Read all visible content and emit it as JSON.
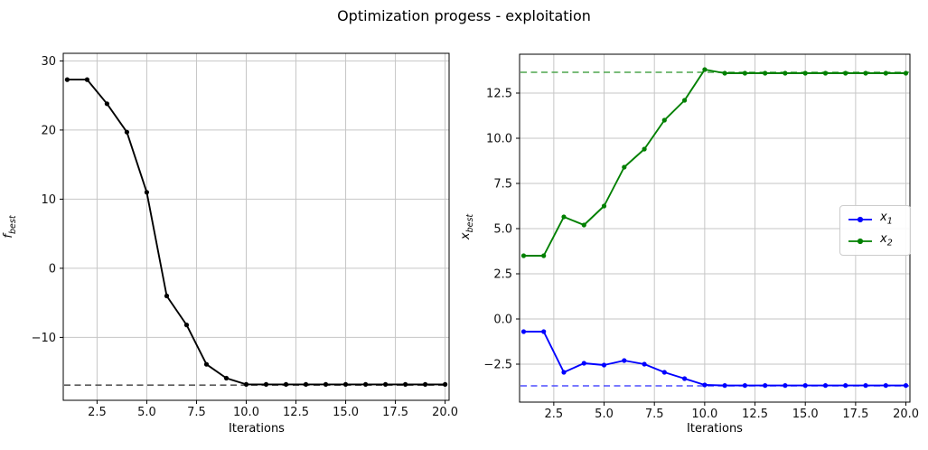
{
  "figure": {
    "title": "Optimization progess - exploitation",
    "background": "#ffffff"
  },
  "chart_data": [
    {
      "type": "line",
      "title": "",
      "xlabel": "Iterations",
      "ylabel": "f_best",
      "ylabel_parts": {
        "var": "f",
        "sub": "best"
      },
      "grid": true,
      "xlim": [
        0.8,
        20.2
      ],
      "ylim": [
        -19.1,
        31.1
      ],
      "xticks": [
        {
          "value": 2.5,
          "label": "2.5"
        },
        {
          "value": 5.0,
          "label": "5.0"
        },
        {
          "value": 7.5,
          "label": "7.5"
        },
        {
          "value": 10.0,
          "label": "10.0"
        },
        {
          "value": 12.5,
          "label": "12.5"
        },
        {
          "value": 15.0,
          "label": "15.0"
        },
        {
          "value": 17.5,
          "label": "17.5"
        },
        {
          "value": 20.0,
          "label": "20.0"
        }
      ],
      "yticks": [
        {
          "value": -10,
          "label": "−10"
        },
        {
          "value": 0,
          "label": "0"
        },
        {
          "value": 10,
          "label": "10"
        },
        {
          "value": 20,
          "label": "20"
        },
        {
          "value": 30,
          "label": "30"
        }
      ],
      "x": [
        1,
        2,
        3,
        4,
        5,
        6,
        7,
        8,
        9,
        10,
        11,
        12,
        13,
        14,
        15,
        16,
        17,
        18,
        19,
        20
      ],
      "series": [
        {
          "name": "f_best",
          "color": "#000000",
          "marker": "point",
          "values": [
            27.3,
            27.3,
            23.8,
            19.7,
            11.0,
            -4.0,
            -8.2,
            -13.9,
            -15.9,
            -16.8,
            -16.8,
            -16.8,
            -16.8,
            -16.8,
            -16.8,
            -16.8,
            -16.8,
            -16.8,
            -16.8,
            -16.8
          ]
        }
      ],
      "reference_lines": [
        {
          "y": -16.9,
          "color": "#595959",
          "style": "dashed"
        }
      ],
      "legend": null
    },
    {
      "type": "line",
      "title": "",
      "xlabel": "Iterations",
      "ylabel": "x_best",
      "ylabel_parts": {
        "var": "x",
        "sub": "best"
      },
      "grid": true,
      "xlim": [
        0.8,
        20.2
      ],
      "ylim": [
        -4.6,
        14.65
      ],
      "xticks": [
        {
          "value": 2.5,
          "label": "2.5"
        },
        {
          "value": 5.0,
          "label": "5.0"
        },
        {
          "value": 7.5,
          "label": "7.5"
        },
        {
          "value": 10.0,
          "label": "10.0"
        },
        {
          "value": 12.5,
          "label": "12.5"
        },
        {
          "value": 15.0,
          "label": "15.0"
        },
        {
          "value": 17.5,
          "label": "17.5"
        },
        {
          "value": 20.0,
          "label": "20.0"
        }
      ],
      "yticks": [
        {
          "value": -2.5,
          "label": "−2.5"
        },
        {
          "value": 0.0,
          "label": "0.0"
        },
        {
          "value": 2.5,
          "label": "2.5"
        },
        {
          "value": 5.0,
          "label": "5.0"
        },
        {
          "value": 7.5,
          "label": "7.5"
        },
        {
          "value": 10.0,
          "label": "10.0"
        },
        {
          "value": 12.5,
          "label": "12.5"
        }
      ],
      "x": [
        1,
        2,
        3,
        4,
        5,
        6,
        7,
        8,
        9,
        10,
        11,
        12,
        13,
        14,
        15,
        16,
        17,
        18,
        19,
        20
      ],
      "series": [
        {
          "name": "x_1",
          "color": "#0000ff",
          "marker": "point",
          "values": [
            -0.7,
            -0.7,
            -2.95,
            -2.45,
            -2.55,
            -2.3,
            -2.5,
            -2.95,
            -3.3,
            -3.65,
            -3.68,
            -3.68,
            -3.68,
            -3.68,
            -3.68,
            -3.68,
            -3.68,
            -3.68,
            -3.68,
            -3.68
          ]
        },
        {
          "name": "x_2",
          "color": "#008000",
          "marker": "point",
          "values": [
            3.5,
            3.5,
            5.65,
            5.2,
            6.25,
            8.4,
            9.4,
            11.0,
            12.1,
            13.8,
            13.6,
            13.6,
            13.6,
            13.6,
            13.6,
            13.6,
            13.6,
            13.6,
            13.6,
            13.6
          ]
        }
      ],
      "reference_lines": [
        {
          "y": 13.65,
          "color": "#4da64d",
          "style": "dashed"
        },
        {
          "y": -3.7,
          "color": "#4d4dff",
          "style": "dashed"
        }
      ],
      "legend": {
        "position": "center right",
        "entries": [
          {
            "var": "x",
            "sub": "1",
            "color": "#0000ff"
          },
          {
            "var": "x",
            "sub": "2",
            "color": "#008000"
          }
        ]
      }
    }
  ]
}
